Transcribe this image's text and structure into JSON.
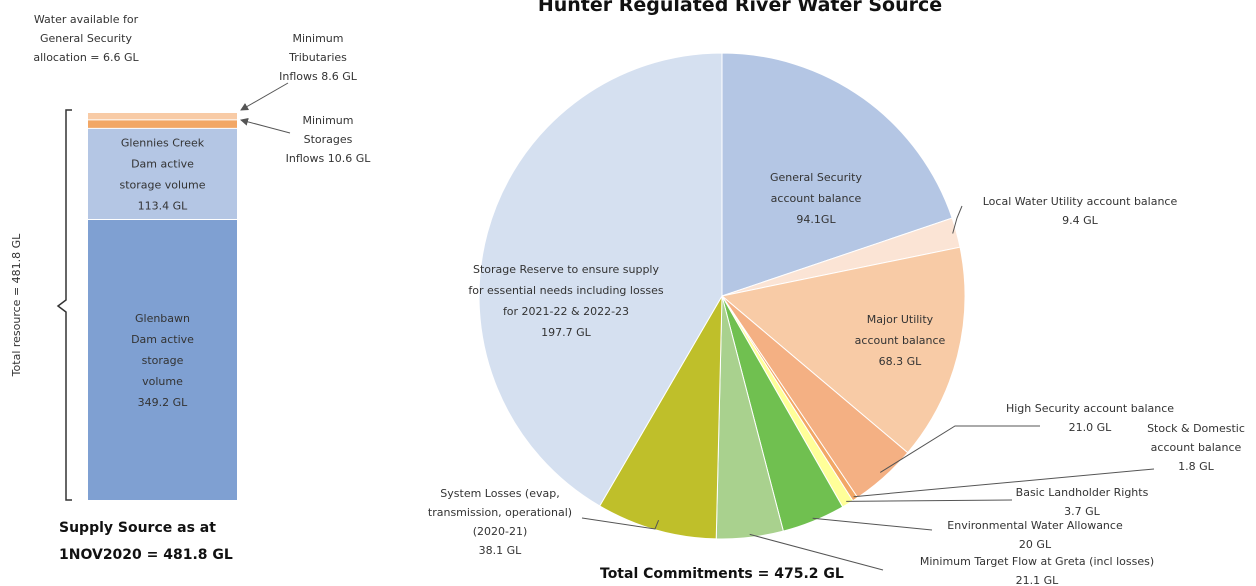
{
  "chart_data": [
    {
      "type": "bar",
      "subtype": "stacked",
      "title": "Supply Source as at 1NOV2020 = 481.8 GL",
      "title_lines": [
        "Supply Source as at",
        "1NOV2020 = 481.8 GL"
      ],
      "ylabel": "Total resource = 481.8 GL",
      "total": 481.8,
      "unit": "GL",
      "segments": [
        {
          "name": "Glenbawn Dam active storage volume",
          "value": 349.2,
          "color": "#7fa0d2",
          "label_lines": [
            "Glenbawn",
            "Dam active",
            "storage",
            "volume",
            "349.2 GL"
          ]
        },
        {
          "name": "Glennies Creek Dam active storage volume",
          "value": 113.4,
          "color": "#b4c6e4",
          "label_lines": [
            "Glennies Creek",
            "Dam active",
            "storage volume",
            "113.4 GL"
          ]
        },
        {
          "name": "Minimum Storages Inflows",
          "value": 10.6,
          "color": "#f2a766",
          "label_lines": [
            "Minimum",
            "Storages",
            "Inflows  10.6 GL"
          ]
        },
        {
          "name": "Minimum Tributaries Inflows",
          "value": 8.6,
          "color": "#f8cba6",
          "label_lines": [
            "Minimum",
            "Tributaries",
            "Inflows  8.6 GL"
          ]
        }
      ],
      "annotation_lines": [
        "Water available for",
        "General Security",
        "allocation = 6.6 GL"
      ]
    },
    {
      "type": "pie",
      "title": "Hunter Regulated River Water Source",
      "footer": "Total Commitments = 475.2 GL",
      "unit": "GL",
      "slices": [
        {
          "name": "General Security account balance",
          "value": 94.1,
          "color": "#b4c6e4",
          "label_lines": [
            "General Security",
            "account balance",
            "94.1GL"
          ]
        },
        {
          "name": "Local Water Utility account balance",
          "value": 9.4,
          "color": "#fbe4d5",
          "label_lines": [
            "Local Water Utility account balance",
            "9.4 GL"
          ]
        },
        {
          "name": "Major Utility account balance",
          "value": 68.3,
          "color": "#f8cba6",
          "label_lines": [
            "Major Utility",
            "account balance",
            "68.3 GL"
          ]
        },
        {
          "name": "High Security account balance",
          "value": 21.0,
          "color": "#f4b083",
          "label_lines": [
            "High Security account balance",
            "21.0 GL"
          ]
        },
        {
          "name": "Stock & Domestic account balance",
          "value": 1.8,
          "color": "#f2a766",
          "label_lines": [
            "Stock & Domestic",
            "account balance",
            "1.8 GL"
          ]
        },
        {
          "name": "Basic Landholder Rights",
          "value": 3.7,
          "color": "#ffff99",
          "label_lines": [
            "Basic Landholder Rights",
            "3.7 GL"
          ]
        },
        {
          "name": "Environmental Water Allowance",
          "value": 20.0,
          "color": "#70c050",
          "label_lines": [
            "Environmental Water Allowance",
            "20 GL"
          ]
        },
        {
          "name": "Minimum Target Flow at Greta (incl losses)",
          "value": 21.1,
          "color": "#a9d18e",
          "label_lines": [
            "Minimum Target Flow at Greta (incl losses)",
            "21.1 GL"
          ]
        },
        {
          "name": "System Losses (evap, transmission, operational) (2020-21)",
          "value": 38.1,
          "color": "#bfbf2a",
          "label_lines": [
            "System Losses (evap,",
            "transmission, operational)",
            "(2020-21)",
            "38.1 GL"
          ]
        },
        {
          "name": "Storage Reserve to ensure supply for essential needs including losses for 2021-22 & 2022-23",
          "value": 197.7,
          "color": "#d5e0f0",
          "label_lines": [
            "Storage Reserve to ensure supply",
            "for essential needs including losses",
            "for 2021-22 & 2022-23",
            "197.7 GL"
          ]
        }
      ]
    }
  ]
}
